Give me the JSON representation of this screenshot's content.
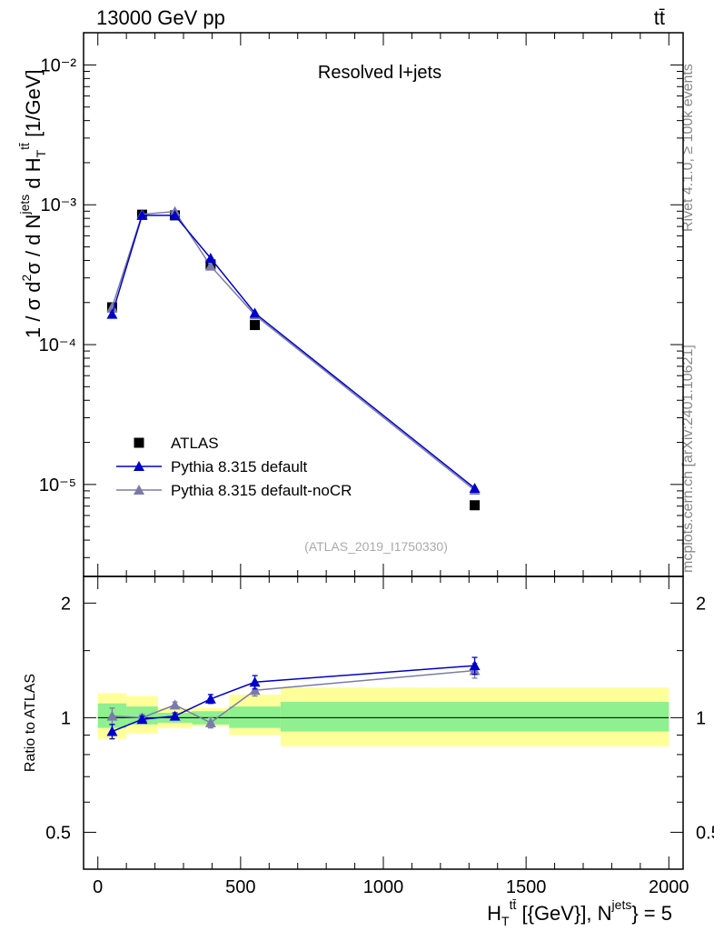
{
  "header": {
    "left": "13000 GeV pp",
    "right": "tt̄"
  },
  "side_labels": {
    "rivet": "Rivet 4.1.0, ≥ 100k events",
    "mcplots": "mcplots.cern.ch [arXiv:2401.10621]"
  },
  "chart_data": [
    {
      "type": "line",
      "panel": "main",
      "title": "Resolved l+jets",
      "analysis_id": "(ATLAS_2019_I1750330)",
      "ylabel": "1 / σ d²σ / d N^{jets} d H_T^{tt̄} [1/GeV]",
      "yscale": "log",
      "ylim": [
        2.2e-06,
        0.017
      ],
      "xlim": [
        -50,
        2050
      ],
      "ytick_labels": [
        "10⁻⁵",
        "10⁻⁴",
        "10⁻³",
        "10⁻²"
      ],
      "legend": {
        "position": "bottom-left",
        "entries": [
          "ATLAS",
          "Pythia 8.315 default",
          "Pythia 8.315 default-noCR"
        ]
      },
      "series": [
        {
          "name": "ATLAS",
          "marker": "square",
          "color": "#000000",
          "x": [
            50,
            155,
            270,
            395,
            550,
            1320
          ],
          "y": [
            0.000185,
            0.00085,
            0.00084,
            0.000375,
            0.000138,
            7.1e-06
          ]
        },
        {
          "name": "Pythia 8.315 default",
          "marker": "triangle",
          "color": "#0000cc",
          "x": [
            50,
            155,
            270,
            395,
            550,
            1320
          ],
          "y": [
            0.000165,
            0.00084,
            0.00084,
            0.000415,
            0.000168,
            9.4e-06
          ]
        },
        {
          "name": "Pythia 8.315 default-noCR",
          "marker": "triangle",
          "color": "#7b7baa",
          "x": [
            50,
            155,
            270,
            395,
            550,
            1320
          ],
          "y": [
            0.000185,
            0.000855,
            0.000895,
            0.000365,
            0.000163,
            9.1e-06
          ]
        }
      ]
    },
    {
      "type": "line",
      "panel": "ratio",
      "ylabel": "Ratio to ATLAS",
      "xlabel": "H_T^{tt̄} [{GeV}], N^{jets} = 5",
      "xlim": [
        -50,
        2050
      ],
      "ylim": [
        0.4,
        2.35
      ],
      "xtick_labels": [
        "0",
        "500",
        "1000",
        "1500",
        "2000"
      ],
      "ytick_labels": [
        "0.5",
        "1",
        "2"
      ],
      "reference_line": 1.0,
      "bands": {
        "bins": [
          0,
          100,
          210,
          330,
          460,
          640,
          2000
        ],
        "stat": {
          "color": "#8ef08e",
          "low": [
            0.94,
            0.96,
            0.97,
            0.96,
            0.94,
            0.92
          ],
          "high": [
            1.09,
            1.07,
            1.03,
            1.04,
            1.07,
            1.1
          ]
        },
        "total": {
          "color": "#ffff99",
          "low": [
            0.88,
            0.91,
            0.94,
            0.95,
            0.9,
            0.84
          ],
          "high": [
            1.16,
            1.14,
            1.06,
            1.06,
            1.15,
            1.2
          ]
        }
      },
      "series": [
        {
          "name": "Pythia 8.315 default",
          "color": "#0000cc",
          "x": [
            50,
            155,
            270,
            395,
            550,
            1320
          ],
          "y": [
            0.92,
            0.99,
            1.01,
            1.12,
            1.24,
            1.37
          ],
          "err": [
            0.04,
            0.02,
            0.02,
            0.03,
            0.05,
            0.07
          ]
        },
        {
          "name": "Pythia 8.315 default-noCR",
          "color": "#7b7baa",
          "x": [
            50,
            155,
            270,
            395,
            550,
            1320
          ],
          "y": [
            1.01,
            1.0,
            1.08,
            0.97,
            1.18,
            1.33
          ],
          "err": [
            0.05,
            0.02,
            0.02,
            0.03,
            0.04,
            0.06
          ]
        }
      ]
    }
  ]
}
